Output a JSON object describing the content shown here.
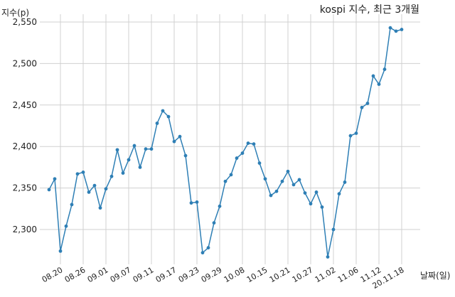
{
  "chart_data": {
    "type": "line",
    "title": "kospi 지수, 최근 3개월",
    "ylabel": "지수(p)",
    "xlabel": "날짜(일)",
    "ylim": [
      2255,
      2560
    ],
    "yticks": [
      2300,
      2350,
      2400,
      2450,
      2500,
      2550
    ],
    "ytick_labels": [
      "2,300",
      "2,350",
      "2,400",
      "2,450",
      "2,500",
      "2,550"
    ],
    "xtick_index": [
      2,
      6,
      10,
      14,
      18,
      22,
      26,
      30,
      34,
      38,
      42,
      46,
      50,
      54,
      58,
      62
    ],
    "xtick_labels": [
      "08.20",
      "08.26",
      "09.01",
      "09.07",
      "09.11",
      "09.17",
      "09.23",
      "09.29",
      "10.08",
      "10.15",
      "10.21",
      "10.27",
      "11.02",
      "11.06",
      "11.12",
      "20.11.18"
    ],
    "grid": true,
    "legend": "none",
    "line_color": "#2e7fb5",
    "series": [
      {
        "values": [
          2348,
          2361,
          2274,
          2304,
          2330,
          2367,
          2369,
          2345,
          2353,
          2326,
          2349,
          2364,
          2396,
          2368,
          2384,
          2401,
          2375,
          2397,
          2397,
          2428,
          2443,
          2436,
          2406,
          2412,
          2389,
          2332,
          2333,
          2272,
          2278,
          2308,
          2328,
          2358,
          2366,
          2386,
          2392,
          2404,
          2403,
          2380,
          2361,
          2341,
          2346,
          2358,
          2370,
          2354,
          2360,
          2344,
          2331,
          2345,
          2327,
          2267,
          2300,
          2343,
          2357,
          2413,
          2416,
          2447,
          2452,
          2485,
          2475,
          2493,
          2543,
          2539,
          2541
        ]
      }
    ]
  }
}
